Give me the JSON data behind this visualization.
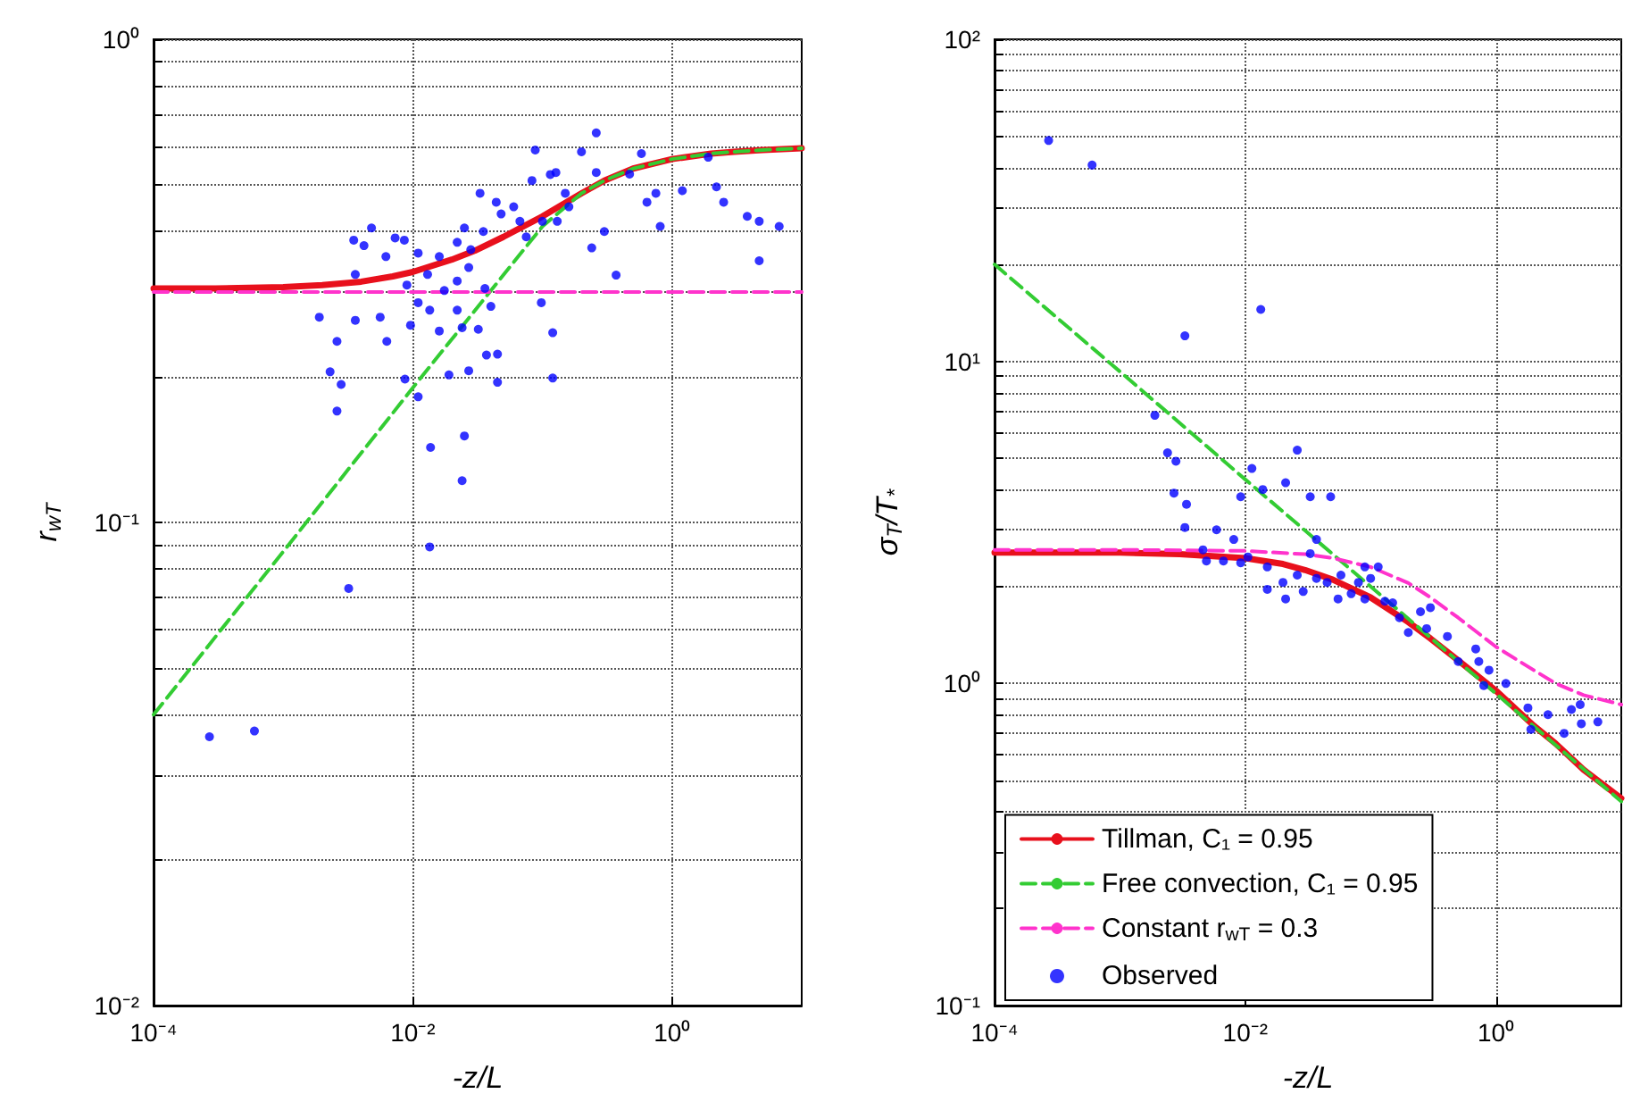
{
  "chart_data": [
    {
      "type": "scatter",
      "xlabel": "-z/L",
      "ylabel": "r$_{wT}$",
      "grid": true,
      "legend": false,
      "log": "xy",
      "xlim": [
        0.0001,
        10
      ],
      "ylim": [
        0.01,
        1
      ],
      "xticks": [
        {
          "value": 0.0001,
          "label": "10⁻⁴"
        },
        {
          "value": 0.01,
          "label": "10⁻²"
        },
        {
          "value": 1,
          "label": "10⁰"
        }
      ],
      "yticks": [
        {
          "value": 0.01,
          "label": "10⁻²"
        },
        {
          "value": 0.02,
          "label": null
        },
        {
          "value": 0.03,
          "label": null
        },
        {
          "value": 0.04,
          "label": null
        },
        {
          "value": 0.05,
          "label": null
        },
        {
          "value": 0.06,
          "label": null
        },
        {
          "value": 0.07,
          "label": null
        },
        {
          "value": 0.08,
          "label": null
        },
        {
          "value": 0.09,
          "label": null
        },
        {
          "value": 0.1,
          "label": "10⁻¹"
        },
        {
          "value": 0.2,
          "label": null
        },
        {
          "value": 0.3,
          "label": null
        },
        {
          "value": 0.4,
          "label": null
        },
        {
          "value": 0.5,
          "label": null
        },
        {
          "value": 0.6,
          "label": null
        },
        {
          "value": 0.7,
          "label": null
        },
        {
          "value": 0.8,
          "label": null
        },
        {
          "value": 0.9,
          "label": null
        },
        {
          "value": 1,
          "label": "10⁰"
        }
      ],
      "series": [
        {
          "type": "line",
          "color": "#e8101c",
          "line_style": "solid",
          "marker": "none",
          "x": [
            0.0001,
            0.0003,
            0.001,
            0.002,
            0.004,
            0.007,
            0.01,
            0.02,
            0.03,
            0.05,
            0.1,
            0.2,
            0.3,
            0.5,
            1,
            2,
            3,
            5,
            10
          ],
          "values": [
            0.305,
            0.305,
            0.307,
            0.31,
            0.315,
            0.323,
            0.33,
            0.35,
            0.365,
            0.39,
            0.43,
            0.48,
            0.51,
            0.54,
            0.565,
            0.58,
            0.585,
            0.59,
            0.595
          ]
        },
        {
          "type": "line",
          "color": "#33cc33",
          "line_style": "dashed",
          "marker": "none",
          "x": [
            0.0001,
            0.001,
            0.01,
            0.1,
            0.2,
            0.3,
            0.5,
            1,
            2,
            3,
            5,
            10
          ],
          "values": [
            0.04,
            0.087,
            0.19,
            0.41,
            0.48,
            0.51,
            0.54,
            0.565,
            0.58,
            0.585,
            0.59,
            0.595
          ]
        },
        {
          "type": "line",
          "color": "#ff33cc",
          "line_style": "dashed",
          "marker": "none",
          "x": [
            0.0001,
            10
          ],
          "values": [
            0.3,
            0.3
          ]
        },
        {
          "type": "scatter",
          "color": "#0000ff",
          "marker": "circle",
          "x": [
            0.00027,
            0.0006,
            0.0032,
            0.0135,
            0.024,
            0.025,
            0.0137,
            0.0026,
            0.0028,
            0.0023,
            0.0087,
            0.019,
            0.027,
            0.045,
            0.12,
            0.12,
            0.011,
            0.0019,
            0.0026,
            0.0036,
            0.0063,
            0.0056,
            0.0096,
            0.016,
            0.024,
            0.032,
            0.037,
            0.045,
            0.0135,
            0.011,
            0.022,
            0.04,
            0.098,
            0.37,
            4.7,
            0.0036,
            0.0035,
            0.0042,
            0.0048,
            0.0073,
            0.0086,
            0.0062,
            0.011,
            0.016,
            0.0175,
            0.022,
            0.025,
            0.028,
            0.035,
            0.048,
            0.033,
            0.06,
            0.067,
            0.083,
            0.1,
            0.13,
            0.088,
            0.2,
            0.26,
            0.26,
            0.16,
            0.24,
            0.3,
            0.47,
            0.58,
            0.64,
            0.75,
            0.81,
            1.2,
            1.9,
            2.2,
            2.5,
            3.8,
            4.7,
            6.7,
            0.115,
            0.15,
            0.044,
            0.013,
            0.009,
            0.022,
            0.036,
            0.075,
            0.127,
            0.027
          ],
          "values": [
            0.036,
            0.037,
            0.073,
            0.089,
            0.122,
            0.151,
            0.143,
            0.17,
            0.193,
            0.205,
            0.198,
            0.202,
            0.206,
            0.195,
            0.199,
            0.247,
            0.182,
            0.266,
            0.237,
            0.262,
            0.237,
            0.266,
            0.256,
            0.249,
            0.253,
            0.251,
            0.222,
            0.223,
            0.275,
            0.285,
            0.275,
            0.28,
            0.285,
            0.325,
            0.348,
            0.326,
            0.384,
            0.374,
            0.407,
            0.388,
            0.384,
            0.355,
            0.361,
            0.355,
            0.302,
            0.38,
            0.407,
            0.367,
            0.4,
            0.435,
            0.48,
            0.45,
            0.42,
            0.51,
            0.42,
            0.42,
            0.59,
            0.585,
            0.64,
            0.53,
            0.45,
            0.37,
            0.4,
            0.526,
            0.58,
            0.46,
            0.48,
            0.41,
            0.486,
            0.57,
            0.495,
            0.46,
            0.43,
            0.42,
            0.41,
            0.525,
            0.48,
            0.46,
            0.326,
            0.31,
            0.316,
            0.305,
            0.39,
            0.53,
            0.337
          ]
        }
      ]
    },
    {
      "type": "scatter",
      "xlabel": "-z/L",
      "ylabel": "σ$_{T}$/T$_{*}$",
      "grid": true,
      "legend": "bottom left",
      "log": "xy",
      "xlim": [
        0.0001,
        10
      ],
      "ylim": [
        0.1,
        100
      ],
      "xticks": [
        {
          "value": 0.0001,
          "label": "10⁻⁴"
        },
        {
          "value": 0.01,
          "label": "10⁻²"
        },
        {
          "value": 1,
          "label": "10⁰"
        }
      ],
      "yticks": [
        {
          "value": 0.1,
          "label": "10⁻¹"
        },
        {
          "value": 0.2,
          "label": null
        },
        {
          "value": 0.3,
          "label": null
        },
        {
          "value": 0.4,
          "label": null
        },
        {
          "value": 0.5,
          "label": null
        },
        {
          "value": 0.6,
          "label": null
        },
        {
          "value": 0.7,
          "label": null
        },
        {
          "value": 0.8,
          "label": null
        },
        {
          "value": 0.9,
          "label": null
        },
        {
          "value": 1,
          "label": "10⁰"
        },
        {
          "value": 2,
          "label": null
        },
        {
          "value": 3,
          "label": null
        },
        {
          "value": 4,
          "label": null
        },
        {
          "value": 5,
          "label": null
        },
        {
          "value": 6,
          "label": null
        },
        {
          "value": 7,
          "label": null
        },
        {
          "value": 8,
          "label": null
        },
        {
          "value": 9,
          "label": null
        },
        {
          "value": 10,
          "label": "10¹"
        },
        {
          "value": 20,
          "label": null
        },
        {
          "value": 30,
          "label": null
        },
        {
          "value": 40,
          "label": null
        },
        {
          "value": 50,
          "label": null
        },
        {
          "value": 60,
          "label": null
        },
        {
          "value": 70,
          "label": null
        },
        {
          "value": 80,
          "label": null
        },
        {
          "value": 90,
          "label": null
        },
        {
          "value": 100,
          "label": "10²"
        }
      ],
      "series": [
        {
          "type": "line",
          "name": "Tillman, C₁ = 0.95",
          "color": "#e8101c",
          "line_style": "solid",
          "marker": "none",
          "x": [
            0.0001,
            0.001,
            0.003,
            0.01,
            0.02,
            0.03,
            0.05,
            0.1,
            0.2,
            0.3,
            0.5,
            1,
            2,
            3,
            5,
            10
          ],
          "values": [
            2.55,
            2.55,
            2.52,
            2.45,
            2.35,
            2.25,
            2.1,
            1.85,
            1.55,
            1.38,
            1.18,
            0.95,
            0.74,
            0.65,
            0.54,
            0.44
          ]
        },
        {
          "type": "line",
          "name": "Free convection, C₁ = 0.95",
          "color": "#33cc33",
          "line_style": "dashed",
          "marker": "none",
          "x": [
            0.0001,
            0.001,
            0.01,
            0.1,
            1,
            10
          ],
          "values": [
            20,
            9.3,
            4.3,
            2.0,
            0.93,
            0.43
          ]
        },
        {
          "type": "line",
          "name": "Constant r$_{wT}$ = 0.3",
          "color": "#ff33cc",
          "line_style": "dashed",
          "marker": "none",
          "x": [
            0.0001,
            0.001,
            0.01,
            0.03,
            0.05,
            0.1,
            0.2,
            0.3,
            0.5,
            1,
            2,
            3,
            5,
            10
          ],
          "values": [
            2.6,
            2.6,
            2.58,
            2.52,
            2.45,
            2.3,
            2.05,
            1.85,
            1.6,
            1.3,
            1.1,
            1.0,
            0.92,
            0.86
          ]
        },
        {
          "type": "scatter",
          "name": "Observed",
          "color": "#0000ff",
          "marker": "circle",
          "x": [
            0.00027,
            0.0006,
            0.0033,
            0.0133,
            0.0019,
            0.0024,
            0.0028,
            0.0027,
            0.0034,
            0.0033,
            0.026,
            0.0113,
            0.0138,
            0.0092,
            0.021,
            0.033,
            0.048,
            0.0059,
            0.0081,
            0.0046,
            0.0067,
            0.0105,
            0.015,
            0.02,
            0.026,
            0.029,
            0.021,
            0.033,
            0.037,
            0.015,
            0.045,
            0.058,
            0.08,
            0.1,
            0.115,
            0.13,
            0.17,
            0.2,
            0.28,
            0.25,
            0.3,
            0.41,
            0.5,
            0.69,
            0.73,
            0.88,
            0.8,
            1.2,
            1.8,
            1.9,
            2.6,
            3.5,
            4.0,
            4.7,
            4.8,
            6.5,
            0.07,
            0.055,
            0.09,
            0.15,
            0.09,
            0.037,
            0.0049,
            0.0092
          ],
          "values": [
            48.5,
            40.7,
            12.0,
            14.5,
            6.8,
            5.2,
            4.9,
            3.9,
            3.6,
            3.05,
            5.3,
            4.65,
            4.0,
            3.8,
            4.2,
            3.8,
            3.8,
            3.0,
            2.8,
            2.6,
            2.4,
            2.47,
            2.3,
            2.06,
            2.17,
            1.93,
            1.83,
            2.53,
            2.8,
            1.96,
            2.06,
            2.17,
            2.06,
            2.12,
            2.3,
            1.8,
            1.6,
            1.44,
            1.48,
            1.67,
            1.72,
            1.4,
            1.17,
            1.28,
            1.17,
            1.1,
            0.985,
            1.0,
            0.84,
            0.72,
            0.8,
            0.7,
            0.83,
            0.86,
            0.75,
            0.76,
            1.9,
            1.83,
            1.83,
            1.78,
            2.3,
            2.12,
            2.4,
            2.37
          ]
        }
      ]
    }
  ]
}
